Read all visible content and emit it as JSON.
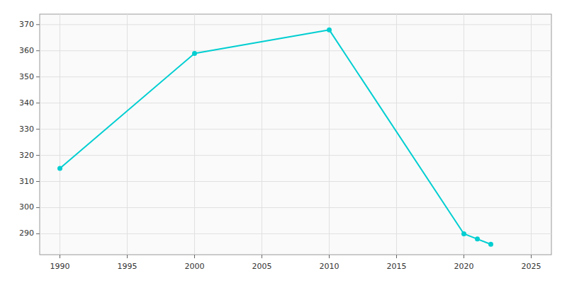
{
  "chart_data": {
    "type": "line",
    "x": [
      1990,
      2000,
      2010,
      2020,
      2021,
      2022
    ],
    "values": [
      315,
      359,
      368,
      290,
      288,
      286
    ],
    "color": "#00CED1",
    "marker": "circle",
    "xlim": [
      1988.5,
      2026.5
    ],
    "ylim": [
      282,
      374
    ],
    "xticks": [
      1990,
      1995,
      2000,
      2005,
      2010,
      2015,
      2020,
      2025
    ],
    "yticks": [
      290,
      300,
      310,
      320,
      330,
      340,
      350,
      360,
      370
    ],
    "grid": true
  }
}
